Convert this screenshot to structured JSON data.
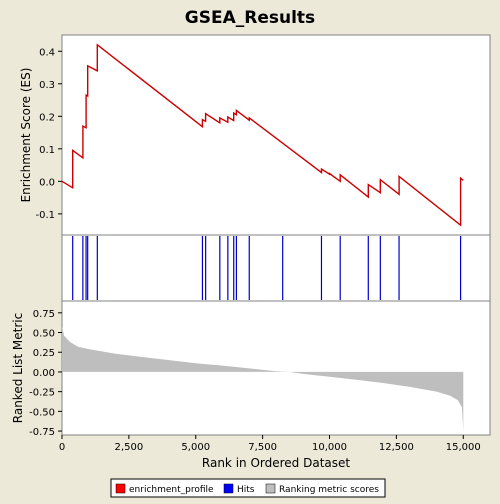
{
  "chart_data": {
    "title": "GSEA_Results",
    "type": "line",
    "xlabel": "Rank in Ordered Dataset",
    "xlim": [
      0,
      16000
    ],
    "x_ticks": [
      0,
      2500,
      5000,
      7500,
      10000,
      12500,
      15000
    ],
    "x_tick_labels": [
      "0",
      "2,500",
      "5,000",
      "7,500",
      "10,000",
      "12,500",
      "15,000"
    ],
    "panels": {
      "es": {
        "ylabel": "Enrichment Score (ES)",
        "ylim": [
          -0.165,
          0.45
        ],
        "y_ticks": [
          -0.1,
          0.0,
          0.1,
          0.2,
          0.3,
          0.4
        ],
        "y_tick_labels": [
          "-0.1",
          "0.0",
          "0.1",
          "0.2",
          "0.3",
          "0.4"
        ]
      },
      "metric": {
        "ylabel": "Ranked List Metric",
        "ylim": [
          -0.8,
          0.9
        ],
        "y_ticks": [
          -0.75,
          -0.5,
          -0.25,
          0.0,
          0.25,
          0.5,
          0.75
        ],
        "y_tick_labels": [
          "-0.75",
          "-0.50",
          "-0.25",
          "0.00",
          "0.25",
          "0.50",
          "0.75"
        ]
      }
    },
    "series": [
      {
        "name": "enrichment_profile",
        "color": "#CC0000",
        "points": [
          [
            0,
            0.0
          ],
          [
            400,
            -0.02
          ],
          [
            400,
            0.095
          ],
          [
            780,
            0.072
          ],
          [
            780,
            0.17
          ],
          [
            900,
            0.165
          ],
          [
            900,
            0.265
          ],
          [
            960,
            0.262
          ],
          [
            960,
            0.355
          ],
          [
            1320,
            0.34
          ],
          [
            1320,
            0.42
          ],
          [
            5250,
            0.168
          ],
          [
            5250,
            0.19
          ],
          [
            5370,
            0.185
          ],
          [
            5370,
            0.208
          ],
          [
            5900,
            0.18
          ],
          [
            5900,
            0.195
          ],
          [
            6200,
            0.182
          ],
          [
            6200,
            0.198
          ],
          [
            6420,
            0.187
          ],
          [
            6420,
            0.21
          ],
          [
            6520,
            0.205
          ],
          [
            6520,
            0.218
          ],
          [
            7000,
            0.188
          ],
          [
            7000,
            0.195
          ],
          [
            9700,
            0.027
          ],
          [
            9700,
            0.038
          ],
          [
            10000,
            0.022
          ],
          [
            10000,
            0.024
          ],
          [
            10400,
            0.0
          ],
          [
            10400,
            0.02
          ],
          [
            11450,
            -0.048
          ],
          [
            11450,
            -0.01
          ],
          [
            11900,
            -0.035
          ],
          [
            11900,
            0.005
          ],
          [
            12600,
            -0.04
          ],
          [
            12600,
            0.015
          ],
          [
            14900,
            -0.135
          ],
          [
            14900,
            0.01
          ],
          [
            15000,
            0.003
          ]
        ]
      },
      {
        "name": "Hits",
        "color": "#0000CC",
        "x": [
          400,
          780,
          900,
          960,
          1320,
          5250,
          5370,
          5900,
          6200,
          6420,
          6520,
          7000,
          8250,
          9700,
          10400,
          11450,
          11900,
          12600,
          14900
        ]
      },
      {
        "name": "Ranking metric scores",
        "color": "#BEBEBE",
        "profile": [
          [
            0,
            0.58
          ],
          [
            80,
            0.46
          ],
          [
            300,
            0.38
          ],
          [
            600,
            0.32
          ],
          [
            1000,
            0.29
          ],
          [
            2000,
            0.23
          ],
          [
            3000,
            0.19
          ],
          [
            4000,
            0.15
          ],
          [
            5000,
            0.11
          ],
          [
            6000,
            0.08
          ],
          [
            7000,
            0.045
          ],
          [
            8000,
            0.01
          ],
          [
            8500,
            0.0
          ],
          [
            9000,
            -0.025
          ],
          [
            10000,
            -0.06
          ],
          [
            11000,
            -0.1
          ],
          [
            12000,
            -0.14
          ],
          [
            13000,
            -0.19
          ],
          [
            14000,
            -0.25
          ],
          [
            14500,
            -0.3
          ],
          [
            14800,
            -0.36
          ],
          [
            14950,
            -0.45
          ],
          [
            15000,
            -0.75
          ]
        ]
      }
    ],
    "legend": {
      "placement": "bottom",
      "entries": [
        {
          "label": "enrichment_profile",
          "color": "#FF0000"
        },
        {
          "label": "Hits",
          "color": "#0000FF"
        },
        {
          "label": "Ranking metric scores",
          "color": "#BEBEBE"
        }
      ]
    }
  }
}
